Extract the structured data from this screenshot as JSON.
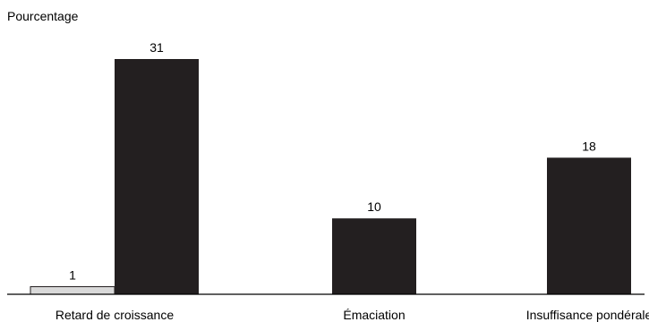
{
  "chart_data": {
    "type": "bar",
    "ylabel": "Pourcentage",
    "categories": [
      "Retard de croissance",
      "Émaciation",
      "Insuffisance pondérale"
    ],
    "series": [
      {
        "values": [
          1,
          null,
          null
        ],
        "color": "#d9d9d9"
      },
      {
        "values": [
          31,
          10,
          18
        ],
        "color": "#231f20"
      }
    ],
    "ylim": [
      0,
      31
    ],
    "grid": false,
    "legend": "none"
  }
}
